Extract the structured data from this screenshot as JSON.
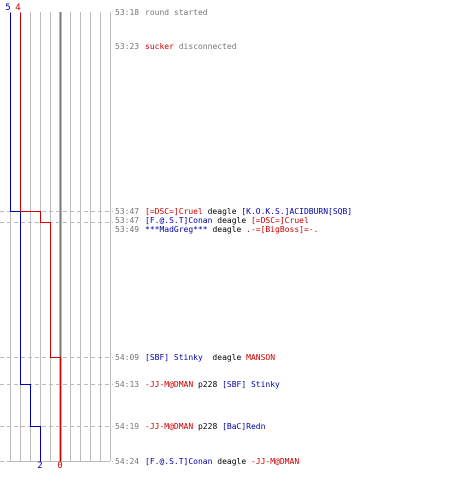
{
  "chart_data": {
    "type": "line",
    "title": "",
    "xlabel": "",
    "ylabel": "",
    "colors": {
      "blue": "#0000aa",
      "red": "#cc0000",
      "grid": "#bbbbbb",
      "center": "#777777",
      "dashed": "#bbbbbb",
      "time": "#777777",
      "text": "#000000"
    },
    "start_counts": {
      "blue": "5",
      "red": "4"
    },
    "end_counts": {
      "blue": "2",
      "red": "0"
    },
    "x_range": [
      5,
      -5
    ],
    "series": [
      {
        "name": "",
        "team": "blue",
        "points": [
          [
            "53:18",
            5
          ],
          [
            "53:47",
            4
          ],
          [
            "54:13",
            3
          ],
          [
            "54:19",
            2
          ],
          [
            "54:24",
            2
          ]
        ]
      },
      {
        "name": "",
        "team": "red",
        "points": [
          [
            "53:18",
            4
          ],
          [
            "53:47",
            3
          ],
          [
            "53:47",
            2
          ],
          [
            "53:49",
            1
          ],
          [
            "54:09",
            0
          ],
          [
            "54:24",
            0
          ]
        ]
      }
    ],
    "events": [
      {
        "time": "53:18",
        "dashed": false,
        "parts": [
          {
            "text": "round started",
            "color": "time"
          }
        ]
      },
      {
        "time": "53:23",
        "dashed": false,
        "parts": [
          {
            "text": "sucker",
            "color": "red"
          },
          {
            "text": " disconnected",
            "color": "time"
          }
        ]
      },
      {
        "time": "53:47",
        "dashed": true,
        "parts": [
          {
            "text": "[=DSC=]Cruel",
            "color": "red"
          },
          {
            "text": " deagle ",
            "color": "text"
          },
          {
            "text": "[K.O.K.S.]ACIDBURN[SQB]",
            "color": "blue"
          }
        ]
      },
      {
        "time": "53:47",
        "dashed": true,
        "parts": [
          {
            "text": "[F.@.S.T]Conan",
            "color": "blue"
          },
          {
            "text": " deagle ",
            "color": "text"
          },
          {
            "text": "[=DSC=]Cruel",
            "color": "red"
          }
        ]
      },
      {
        "time": "53:49",
        "dashed": true,
        "parts": [
          {
            "text": "***MadGreg***",
            "color": "blue"
          },
          {
            "text": " deagle ",
            "color": "text"
          },
          {
            "text": ".-=[BigBoss]=-.",
            "color": "red"
          }
        ]
      },
      {
        "time": "54:09",
        "dashed": true,
        "parts": [
          {
            "text": "[SBF] Stinky",
            "color": "blue"
          },
          {
            "text": "  deagle ",
            "color": "text"
          },
          {
            "text": "MANSON",
            "color": "red"
          }
        ]
      },
      {
        "time": "54:13",
        "dashed": true,
        "parts": [
          {
            "text": "-JJ-M@DMAN",
            "color": "red"
          },
          {
            "text": " p228 ",
            "color": "text"
          },
          {
            "text": "[SBF] Stinky",
            "color": "blue"
          }
        ]
      },
      {
        "time": "54:19",
        "dashed": true,
        "parts": [
          {
            "text": "-JJ-M@DMAN",
            "color": "red"
          },
          {
            "text": " p228 ",
            "color": "text"
          },
          {
            "text": "[BaC]Redn",
            "color": "blue"
          }
        ]
      },
      {
        "time": "54:24",
        "dashed": true,
        "parts": [
          {
            "text": "[F.@.S.T]Conan",
            "color": "blue"
          },
          {
            "text": " deagle ",
            "color": "text"
          },
          {
            "text": "-JJ-M@DMAN",
            "color": "red"
          }
        ]
      }
    ]
  }
}
